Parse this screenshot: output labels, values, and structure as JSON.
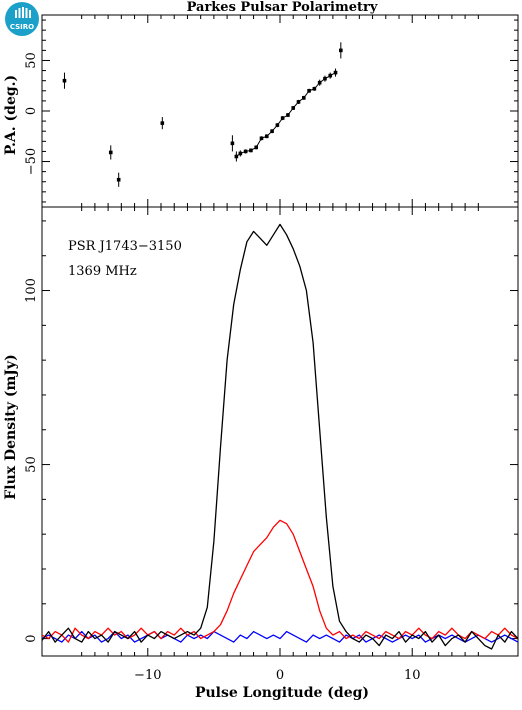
{
  "header": {
    "title": "Parkes Pulsar Polarimetry",
    "logo_text": "CSIRO",
    "logo_color": "#1ba1c9"
  },
  "chart_data": [
    {
      "panel": "top",
      "type": "scatter",
      "xlabel": "",
      "ylabel": "P.A. (deg.)",
      "xlim": [
        -18,
        18
      ],
      "ylim": [
        -95,
        95
      ],
      "yticks": [
        50,
        0,
        -50
      ],
      "ytick_labels": [
        "50",
        "0",
        "−50"
      ],
      "series": [
        {
          "color": "#000000",
          "points": [
            {
              "x": -16.3,
              "y": 30,
              "err": 8
            },
            {
              "x": -12.8,
              "y": -41,
              "err": 7
            },
            {
              "x": -12.2,
              "y": -68,
              "err": 7
            },
            {
              "x": -8.9,
              "y": -12,
              "err": 6
            },
            {
              "x": -3.6,
              "y": -32,
              "err": 8
            },
            {
              "x": -3.3,
              "y": -45,
              "err": 5
            },
            {
              "x": -3.0,
              "y": -42,
              "err": 3
            },
            {
              "x": -2.6,
              "y": -40,
              "err": 2
            },
            {
              "x": -2.2,
              "y": -39,
              "err": 2
            },
            {
              "x": -1.8,
              "y": -36,
              "err": 2
            },
            {
              "x": -1.4,
              "y": -27,
              "err": 2
            },
            {
              "x": -1.0,
              "y": -25,
              "err": 2
            },
            {
              "x": -0.6,
              "y": -20,
              "err": 2
            },
            {
              "x": -0.2,
              "y": -14,
              "err": 2
            },
            {
              "x": 0.2,
              "y": -7,
              "err": 2
            },
            {
              "x": 0.6,
              "y": -4,
              "err": 2
            },
            {
              "x": 1.0,
              "y": 3,
              "err": 2
            },
            {
              "x": 1.4,
              "y": 9,
              "err": 2
            },
            {
              "x": 1.8,
              "y": 13,
              "err": 2
            },
            {
              "x": 2.2,
              "y": 20,
              "err": 2
            },
            {
              "x": 2.6,
              "y": 22,
              "err": 2
            },
            {
              "x": 3.0,
              "y": 28,
              "err": 3
            },
            {
              "x": 3.4,
              "y": 32,
              "err": 3
            },
            {
              "x": 3.8,
              "y": 35,
              "err": 3
            },
            {
              "x": 4.2,
              "y": 38,
              "err": 4
            },
            {
              "x": 4.6,
              "y": 60,
              "err": 8
            }
          ]
        }
      ]
    },
    {
      "panel": "bottom",
      "type": "line",
      "xlabel": "Pulse Longitude (deg)",
      "ylabel": "Flux Density (mJy)",
      "xlim": [
        -18,
        18
      ],
      "ylim": [
        -5,
        124
      ],
      "xticks": [
        -10,
        0,
        10
      ],
      "xtick_labels": [
        "−10",
        "0",
        "10"
      ],
      "yticks": [
        0,
        50,
        100
      ],
      "ytick_labels": [
        "0",
        "50",
        "100"
      ],
      "annotations": [
        "PSR J1743−3150",
        "1369 MHz"
      ],
      "x": [
        -18.0,
        -17.5,
        -17.0,
        -16.5,
        -16.0,
        -15.5,
        -15.0,
        -14.5,
        -14.0,
        -13.5,
        -13.0,
        -12.5,
        -12.0,
        -11.5,
        -11.0,
        -10.5,
        -10.0,
        -9.5,
        -9.0,
        -8.5,
        -8.0,
        -7.5,
        -7.0,
        -6.5,
        -6.0,
        -5.5,
        -5.0,
        -4.5,
        -4.0,
        -3.5,
        -3.0,
        -2.5,
        -2.0,
        -1.5,
        -1.0,
        -0.5,
        0.0,
        0.5,
        1.0,
        1.5,
        2.0,
        2.5,
        3.0,
        3.5,
        4.0,
        4.5,
        5.0,
        5.5,
        6.0,
        6.5,
        7.0,
        7.5,
        8.0,
        8.5,
        9.0,
        9.5,
        10.0,
        10.5,
        11.0,
        11.5,
        12.0,
        12.5,
        13.0,
        13.5,
        14.0,
        14.5,
        15.0,
        15.5,
        16.0,
        16.5,
        17.0,
        17.5,
        18.0
      ],
      "series": [
        {
          "color": "#000000",
          "values": [
            -0.5,
            2,
            -1,
            1,
            3,
            0,
            -1,
            2,
            0,
            1,
            -1,
            2,
            1,
            0,
            2,
            -1,
            1,
            0,
            2,
            1,
            0,
            1,
            2,
            1,
            3,
            9,
            28,
            55,
            80,
            96,
            106,
            114,
            117,
            115,
            113,
            116,
            119,
            116,
            112,
            107,
            100,
            85,
            60,
            35,
            15,
            5,
            2,
            0,
            -1,
            1,
            0,
            -2,
            1,
            0,
            2,
            -1,
            1,
            0,
            2,
            -1,
            1,
            -2,
            0,
            1,
            -1,
            2,
            0,
            -2,
            -3,
            1,
            -1,
            2,
            0
          ]
        },
        {
          "color": "#ff0000",
          "values": [
            1,
            0,
            2,
            1,
            -1,
            3,
            1,
            0,
            2,
            1,
            3,
            1,
            2,
            0,
            1,
            3,
            1,
            2,
            0,
            2,
            1,
            3,
            1,
            2,
            0,
            1,
            2,
            4,
            8,
            13,
            17,
            21,
            25,
            27,
            29,
            32,
            34,
            33,
            30,
            25,
            20,
            15,
            8,
            3,
            1,
            2,
            0,
            1,
            0,
            2,
            1,
            0,
            2,
            1,
            0,
            2,
            1,
            3,
            1,
            0,
            2,
            1,
            3,
            1,
            0,
            2,
            1,
            0,
            2,
            1,
            3,
            1,
            0
          ]
        },
        {
          "color": "#0000ff",
          "values": [
            0,
            1,
            0,
            -1,
            1,
            0,
            2,
            0,
            1,
            -1,
            0,
            2,
            0,
            1,
            -1,
            0,
            1,
            2,
            0,
            1,
            0,
            -1,
            1,
            0,
            1,
            0,
            2,
            1,
            0,
            -1,
            1,
            0,
            2,
            1,
            0,
            1,
            0,
            2,
            1,
            0,
            -1,
            1,
            0,
            1,
            0,
            -1,
            1,
            0,
            1,
            -1,
            0,
            1,
            0,
            -1,
            0,
            1,
            0,
            1,
            -1,
            0,
            1,
            0,
            1,
            0,
            -1,
            0,
            1,
            0,
            -1,
            0,
            1,
            0,
            -1
          ]
        }
      ]
    }
  ]
}
